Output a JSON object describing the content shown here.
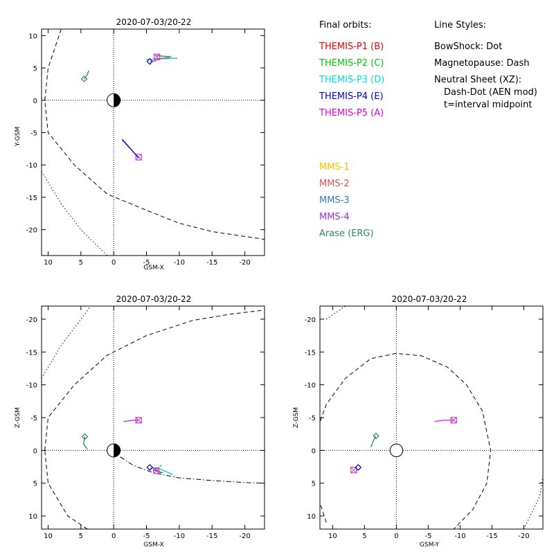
{
  "chart_data": [
    {
      "type": "scatter",
      "title": "2020-07-03/20-22",
      "xlabel": "GSM-X",
      "ylabel": "Y-GSM",
      "xlim": [
        11,
        -23
      ],
      "ylim": [
        11,
        -24
      ],
      "xticks": [
        10,
        5,
        0,
        -5,
        -10,
        -15,
        -20
      ],
      "xtick_labels": [
        "10",
        "5",
        "0",
        "-5",
        "-10",
        "-15",
        "-20"
      ],
      "yticks": [
        -20,
        -15,
        -10,
        -5,
        0,
        5,
        10
      ],
      "ytick_labels": [
        "-20",
        "-15",
        "-10",
        "-5",
        "0",
        "5",
        "10"
      ],
      "earth": {
        "x": 0,
        "y": 0,
        "r": 1,
        "dark_side": "right"
      },
      "curves": [
        {
          "name": "magnetopause",
          "style": "dash",
          "points": [
            [
              8,
              11
            ],
            [
              10,
              5
            ],
            [
              10.5,
              0
            ],
            [
              10,
              -5
            ],
            [
              6,
              -10
            ],
            [
              1,
              -14.5
            ],
            [
              -5,
              -17
            ],
            [
              -10,
              -19
            ],
            [
              -15,
              -20.3
            ],
            [
              -23,
              -21.5
            ]
          ]
        },
        {
          "name": "bowshock",
          "style": "dot",
          "points": [
            [
              11,
              -11
            ],
            [
              8,
              -16
            ],
            [
              5,
              -20
            ],
            [
              1,
              -24
            ]
          ]
        }
      ],
      "spacecraft": [
        {
          "name": "THEMIS-P5 track",
          "color": "#cc33cc",
          "points": [
            [
              -1.3,
              -6
            ],
            [
              -3.7,
              -8.8
            ]
          ],
          "marker": "square",
          "marker_at": [
            -3.8,
            -8.8
          ]
        },
        {
          "name": "THEMIS-P4 track",
          "color": "#0000cc",
          "points": [
            [
              -1.3,
              -6.1
            ],
            [
              -3.8,
              -8.9
            ]
          ]
        },
        {
          "name": "THEMIS-P3 track",
          "color": "#00cccc",
          "points": [
            [
              -5,
              6.3
            ],
            [
              -7,
              6.4
            ],
            [
              -9.7,
              6.5
            ]
          ]
        },
        {
          "name": "THEMIS-P2 track",
          "color": "#00aa00",
          "points": [
            [
              -6.5,
              6.9
            ],
            [
              -8.8,
              6.7
            ]
          ]
        },
        {
          "name": "THEMIS-P5 b",
          "color": "#cc33cc",
          "points": [
            [
              -6.5,
              6.4
            ],
            [
              -8.5,
              6.6
            ]
          ],
          "marker": "square",
          "marker_at": [
            -6.6,
            6.7
          ]
        },
        {
          "name": "THEMIS-P4 b",
          "color": "#0000cc",
          "points": [
            [
              -5.5,
              6
            ]
          ],
          "marker": "diamond",
          "marker_at": [
            -5.5,
            6
          ]
        },
        {
          "name": "Arase",
          "color": "#2e8b57",
          "points": [
            [
              4.5,
              3.3
            ],
            [
              4,
              4
            ],
            [
              3.8,
              4.6
            ]
          ],
          "marker": "diamond",
          "marker_at": [
            4.5,
            3.3
          ]
        },
        {
          "name": "MMS-4 track",
          "color": "#9933cc",
          "points": [
            [
              -5.5,
              6
            ],
            [
              -6.5,
              6.1
            ]
          ]
        }
      ]
    },
    {
      "type": "scatter",
      "title": "2020-07-03/20-22",
      "xlabel": "GSM-X",
      "ylabel": "Z-GSM",
      "xlim": [
        11,
        -23
      ],
      "ylim": [
        -22,
        12
      ],
      "xticks": [
        10,
        5,
        0,
        -5,
        -10,
        -15,
        -20
      ],
      "xtick_labels": [
        "10",
        "5",
        "0",
        "-5",
        "-10",
        "-15",
        "-20"
      ],
      "yticks": [
        -20,
        -15,
        -10,
        -5,
        0,
        5,
        10
      ],
      "ytick_labels": [
        "-20",
        "-15",
        "-10",
        "-5",
        "0",
        "5",
        "10"
      ],
      "earth": {
        "x": 0,
        "y": 0,
        "r": 1,
        "dark_side": "right"
      },
      "curves": [
        {
          "name": "magnetopause upper",
          "style": "dash",
          "points": [
            [
              4,
              12
            ],
            [
              7,
              10
            ],
            [
              10,
              5
            ],
            [
              10.5,
              0
            ]
          ]
        },
        {
          "name": "magnetopause lower",
          "style": "dash",
          "points": [
            [
              10.5,
              0
            ],
            [
              10,
              -5
            ],
            [
              6,
              -10
            ],
            [
              1,
              -14.5
            ],
            [
              -5,
              -17.5
            ],
            [
              -12,
              -19.8
            ],
            [
              -18,
              -20.8
            ],
            [
              -23,
              -21.4
            ]
          ]
        },
        {
          "name": "bowshock",
          "style": "dot",
          "points": [
            [
              11,
              -11
            ],
            [
              8,
              -16
            ],
            [
              5,
              -20
            ],
            [
              3.5,
              -22
            ]
          ]
        },
        {
          "name": "neutral sheet",
          "style": "dashdot",
          "points": [
            [
              -1,
              1
            ],
            [
              -3,
              2.3
            ],
            [
              -6,
              3.4
            ],
            [
              -10,
              4.2
            ],
            [
              -15,
              4.6
            ],
            [
              -20,
              4.9
            ],
            [
              -23,
              5
            ]
          ]
        }
      ],
      "spacecraft": [
        {
          "name": "THEMIS-P5",
          "color": "#cc33cc",
          "points": [
            [
              -1.5,
              -4.4
            ],
            [
              -3,
              -4.6
            ],
            [
              -3.8,
              -4.6
            ]
          ],
          "marker": "square",
          "marker_at": [
            -3.8,
            -4.6
          ]
        },
        {
          "name": "THEMIS-P3",
          "color": "#00cccc",
          "points": [
            [
              -5.5,
              2.7
            ],
            [
              -7,
              2.8
            ],
            [
              -9,
              3.7
            ]
          ]
        },
        {
          "name": "THEMIS-P3 b",
          "color": "#00cccc",
          "points": [
            [
              -7,
              2.5
            ],
            [
              -7.3,
              2.2
            ]
          ]
        },
        {
          "name": "THEMIS-P2",
          "color": "#00aa00",
          "points": [
            [
              -6,
              3
            ],
            [
              -7.5,
              3.4
            ]
          ]
        },
        {
          "name": "THEMIS-P5 b",
          "color": "#cc33cc",
          "points": [
            [
              -6.3,
              2.8
            ],
            [
              -7.3,
              3.5
            ]
          ],
          "marker": "square",
          "marker_at": [
            -6.5,
            3.1
          ]
        },
        {
          "name": "THEMIS-P4",
          "color": "#0000cc",
          "points": [
            [
              -5.5,
              2.6
            ]
          ],
          "marker": "diamond",
          "marker_at": [
            -5.5,
            2.6
          ]
        },
        {
          "name": "Arase",
          "color": "#2e8b57",
          "points": [
            [
              4.4,
              -2.1
            ],
            [
              4.6,
              -1
            ],
            [
              4,
              -0.2
            ]
          ],
          "marker": "diamond",
          "marker_at": [
            4.4,
            -2.1
          ]
        }
      ]
    },
    {
      "type": "scatter",
      "title": "2020-07-03/20-22",
      "xlabel": "GSM-Y",
      "ylabel": "Z-GSM",
      "xlim": [
        12,
        -23
      ],
      "ylim": [
        -22,
        12
      ],
      "xticks": [
        10,
        5,
        0,
        -5,
        -10,
        -15,
        -20
      ],
      "xtick_labels": [
        "10",
        "5",
        "0",
        "-5",
        "-10",
        "-15",
        "-20"
      ],
      "yticks": [
        -20,
        -15,
        -10,
        -5,
        0,
        5,
        10
      ],
      "ytick_labels": [
        "-20",
        "-15",
        "-10",
        "-5",
        "0",
        "5",
        "10"
      ],
      "earth": {
        "x": 0,
        "y": 0,
        "r": 1,
        "dark_side": "none"
      },
      "curves": [
        {
          "name": "magnetopause",
          "style": "dash",
          "points": [
            [
              11,
              11
            ],
            [
              12,
              8
            ],
            [
              13,
              2
            ],
            [
              12.5,
              -3
            ],
            [
              11,
              -7
            ],
            [
              8,
              -11
            ],
            [
              4,
              -14
            ],
            [
              0,
              -14.8
            ],
            [
              -4,
              -14.4
            ],
            [
              -8,
              -12.7
            ],
            [
              -11,
              -10
            ],
            [
              -13.5,
              -6
            ],
            [
              -14.8,
              0
            ],
            [
              -14.2,
              5
            ],
            [
              -12,
              9
            ],
            [
              -9,
              12
            ]
          ]
        },
        {
          "name": "bowshock right",
          "style": "dot",
          "points": [
            [
              -20,
              12
            ],
            [
              -22.5,
              7
            ],
            [
              -23,
              4
            ]
          ]
        },
        {
          "name": "bowshock bottom",
          "style": "dot",
          "points": [
            [
              11,
              -20
            ],
            [
              8,
              -22
            ]
          ]
        }
      ],
      "spacecraft": [
        {
          "name": "THEMIS-P5",
          "color": "#cc33cc",
          "points": [
            [
              -6,
              -4.4
            ],
            [
              -7.5,
              -4.6
            ],
            [
              -9,
              -4.6
            ]
          ],
          "marker": "square",
          "marker_at": [
            -9,
            -4.6
          ]
        },
        {
          "name": "THEMIS-P5 b",
          "color": "#cc33cc",
          "points": [
            [
              6.7,
              3
            ]
          ],
          "marker": "square",
          "marker_at": [
            6.7,
            3
          ]
        },
        {
          "name": "THEMIS-P4",
          "color": "#0000cc",
          "points": [
            [
              6,
              2.6
            ]
          ],
          "marker": "diamond",
          "marker_at": [
            6,
            2.6
          ]
        },
        {
          "name": "Arase",
          "color": "#2e8b57",
          "points": [
            [
              4,
              -0.5
            ],
            [
              3.6,
              -1.5
            ],
            [
              3.2,
              -2.2
            ]
          ],
          "marker": "diamond",
          "marker_at": [
            3.2,
            -2.2
          ]
        }
      ]
    }
  ],
  "legend": {
    "final_orbits_title": "Final orbits:",
    "probes": [
      {
        "label": "THEMIS-P1 (B)",
        "color": "#ee0000"
      },
      {
        "label": "THEMIS-P2 (C)",
        "color": "#00cc00"
      },
      {
        "label": "THEMIS-P3 (D)",
        "color": "#00dddd"
      },
      {
        "label": "THEMIS-P4 (E)",
        "color": "#0000cc"
      },
      {
        "label": "THEMIS-P5 (A)",
        "color": "#dd00dd"
      }
    ],
    "line_styles_title": "Line Styles:",
    "line_styles": [
      "BowShock: Dot",
      "Magnetopause: Dash",
      "Neutral Sheet (XZ):",
      "Dash-Dot (AEN mod)",
      "t=interval midpoint"
    ],
    "missions": [
      {
        "label": "MMS-1",
        "color": "#ffbb00"
      },
      {
        "label": "MMS-2",
        "color": "#cc5555"
      },
      {
        "label": "MMS-3",
        "color": "#3377bb"
      },
      {
        "label": "MMS-4",
        "color": "#9933cc"
      },
      {
        "label": "Arase (ERG)",
        "color": "#2e8b57"
      }
    ]
  }
}
